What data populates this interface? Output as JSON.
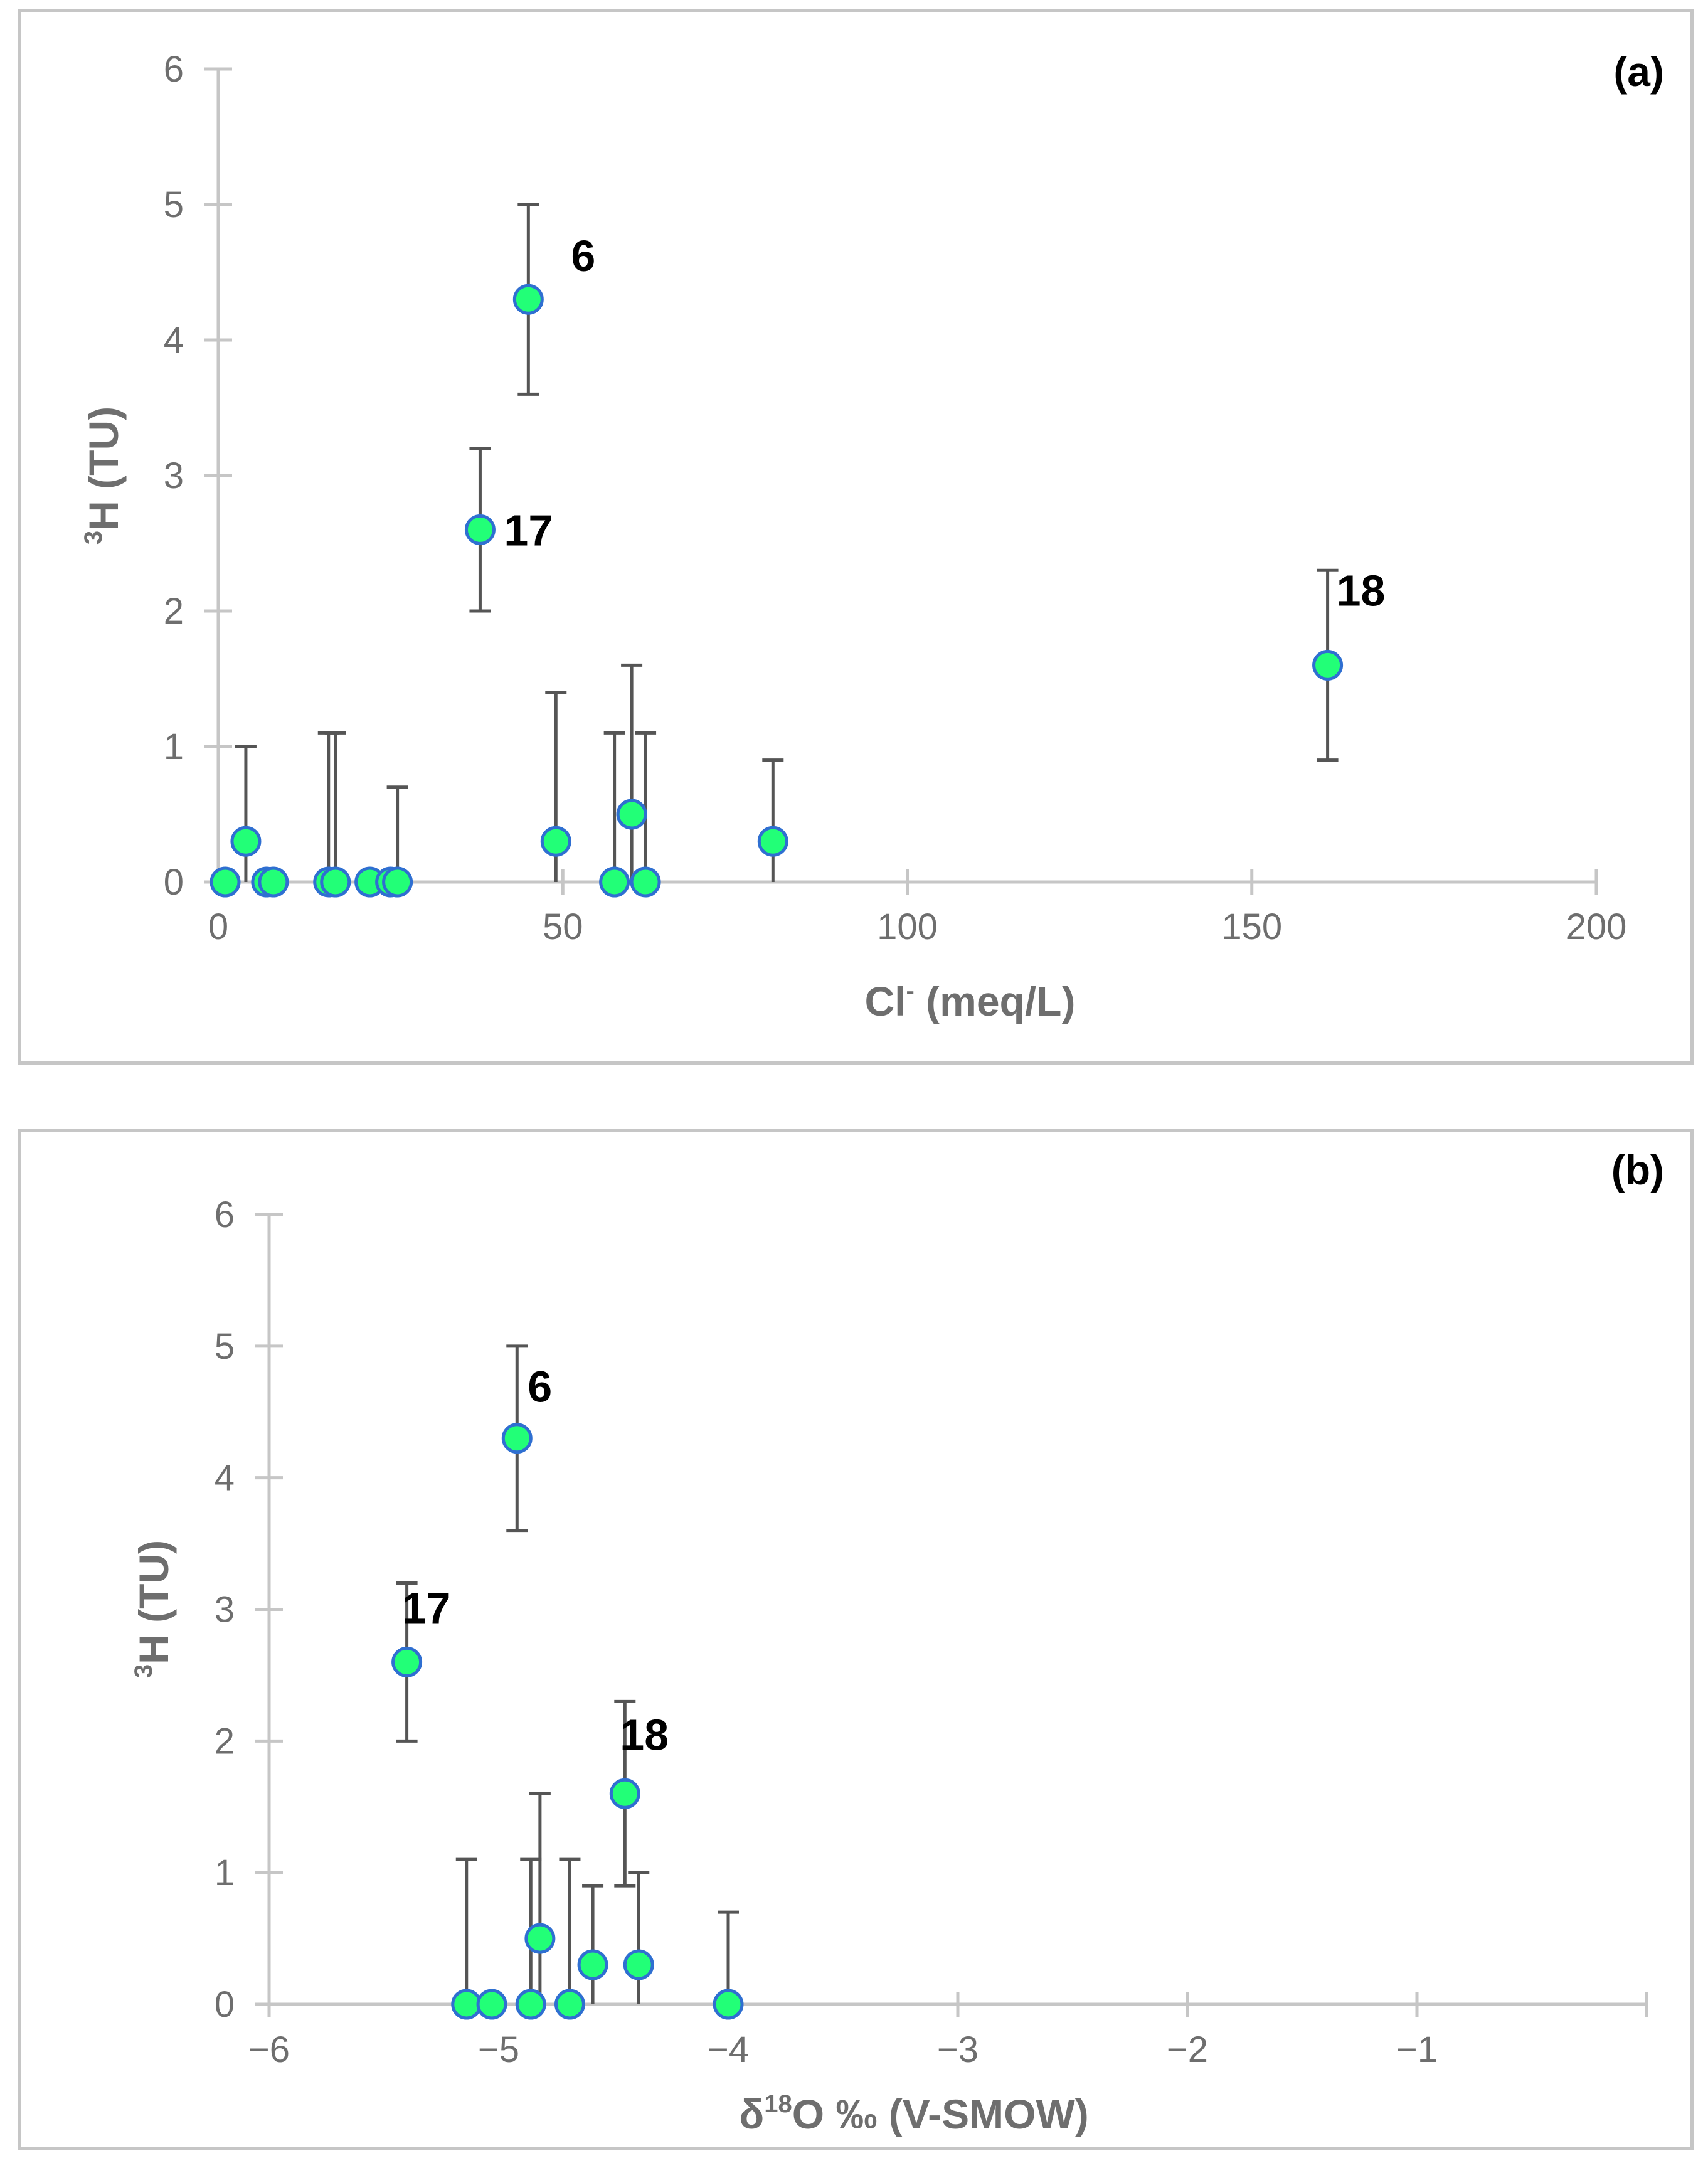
{
  "chart_data": [
    {
      "type": "scatter",
      "panel_label": "(a)",
      "xlabel": "Cl",
      "xlabel_sup": "-",
      "xlabel_rest": " (meq/L)",
      "ylabel_sup": "3",
      "ylabel": "H (TU)",
      "xlim": [
        0,
        200
      ],
      "ylim": [
        0,
        6
      ],
      "xticks": [
        0,
        50,
        100,
        150,
        200
      ],
      "xtick_labels": [
        "0",
        "50",
        "100",
        "150",
        "200"
      ],
      "yticks": [
        0,
        1,
        2,
        3,
        4,
        5,
        6
      ],
      "ytick_labels": [
        "0",
        "1",
        "2",
        "3",
        "4",
        "5",
        "6"
      ],
      "marker_fill": "#22ff77",
      "marker_edge": "#2f6fd1",
      "errorbar_color": "#555555",
      "axis_color": "#c6c6c6",
      "points": [
        {
          "x": 1,
          "y": 0,
          "err_lo": 0,
          "err_hi": 0
        },
        {
          "x": 4,
          "y": 0.3,
          "err_lo": 0.3,
          "err_hi": 0.7
        },
        {
          "x": 7,
          "y": 0,
          "err_lo": 0,
          "err_hi": 0
        },
        {
          "x": 8,
          "y": 0,
          "err_lo": 0,
          "err_hi": 0
        },
        {
          "x": 16,
          "y": 0,
          "err_lo": 0,
          "err_hi": 1.1
        },
        {
          "x": 17,
          "y": 0,
          "err_lo": 0,
          "err_hi": 1.1
        },
        {
          "x": 22,
          "y": 0,
          "err_lo": 0,
          "err_hi": 0
        },
        {
          "x": 25,
          "y": 0,
          "err_lo": 0,
          "err_hi": 0
        },
        {
          "x": 26,
          "y": 0,
          "err_lo": 0,
          "err_hi": 0.7
        },
        {
          "x": 38,
          "y": 2.6,
          "err_lo": 0.6,
          "err_hi": 0.6,
          "label": "17"
        },
        {
          "x": 45,
          "y": 4.3,
          "err_lo": 0.7,
          "err_hi": 0.7,
          "label": "6"
        },
        {
          "x": 49,
          "y": 0.3,
          "err_lo": 0.3,
          "err_hi": 1.1
        },
        {
          "x": 57.5,
          "y": 0,
          "err_lo": 0,
          "err_hi": 1.1
        },
        {
          "x": 60,
          "y": 0.5,
          "err_lo": 0.5,
          "err_hi": 1.1
        },
        {
          "x": 62,
          "y": 0,
          "err_lo": 0,
          "err_hi": 1.1
        },
        {
          "x": 80.5,
          "y": 0.3,
          "err_lo": 0.3,
          "err_hi": 0.6
        },
        {
          "x": 161,
          "y": 1.6,
          "err_lo": 0.7,
          "err_hi": 0.7,
          "label": "18"
        }
      ]
    },
    {
      "type": "scatter",
      "panel_label": "(b)",
      "xlabel": "δ",
      "xlabel_sup": "18",
      "xlabel_rest": "O ‰ (V-SMOW)",
      "ylabel_sup": "3",
      "ylabel": "H (TU)",
      "xlim": [
        -6,
        0
      ],
      "ylim": [
        0,
        6
      ],
      "xticks": [
        -6,
        -5,
        -4,
        -3,
        -2,
        -1
      ],
      "xtick_labels": [
        "−6",
        "−5",
        "−4",
        "−3",
        "−2",
        "−1"
      ],
      "yticks": [
        0,
        1,
        2,
        3,
        4,
        5,
        6
      ],
      "ytick_labels": [
        "0",
        "1",
        "2",
        "3",
        "4",
        "5",
        "6"
      ],
      "marker_fill": "#22ff77",
      "marker_edge": "#2f6fd1",
      "errorbar_color": "#555555",
      "axis_color": "#c6c6c6",
      "points": [
        {
          "x": -5.14,
          "y": 0,
          "err_lo": 0,
          "err_hi": 1.1
        },
        {
          "x": -5.03,
          "y": 0,
          "err_lo": 0,
          "err_hi": 0
        },
        {
          "x": -4.86,
          "y": 0,
          "err_lo": 0,
          "err_hi": 1.1
        },
        {
          "x": -4.69,
          "y": 0,
          "err_lo": 0,
          "err_hi": 1.1
        },
        {
          "x": -4.82,
          "y": 0.5,
          "err_lo": 0.5,
          "err_hi": 1.1
        },
        {
          "x": -4.59,
          "y": 0.3,
          "err_lo": 0.3,
          "err_hi": 0.6
        },
        {
          "x": -4.39,
          "y": 0.3,
          "err_lo": 0.3,
          "err_hi": 0.7
        },
        {
          "x": -4.0,
          "y": 0,
          "err_lo": 0,
          "err_hi": 0.7
        },
        {
          "x": -5.4,
          "y": 2.6,
          "err_lo": 0.6,
          "err_hi": 0.6,
          "label": "17"
        },
        {
          "x": -4.92,
          "y": 4.3,
          "err_lo": 0.7,
          "err_hi": 0.7,
          "label": "6"
        },
        {
          "x": -4.45,
          "y": 1.6,
          "err_lo": 0.7,
          "err_hi": 0.7,
          "label": "18"
        }
      ]
    }
  ]
}
